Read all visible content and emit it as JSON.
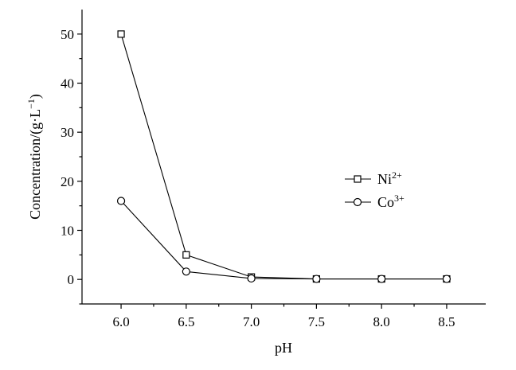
{
  "chart_data": {
    "type": "line",
    "xlabel": "pH",
    "ylabel": "Concentration/(g·L",
    "ylabel_sup": "−1",
    "ylabel_tail": ")",
    "x": [
      6.0,
      6.5,
      7.0,
      7.5,
      8.0,
      8.5
    ],
    "x_tick_labels": [
      "6.0",
      "6.5",
      "7.0",
      "7.5",
      "8.0",
      "8.5"
    ],
    "y_tick_labels": [
      "0",
      "10",
      "20",
      "30",
      "40",
      "50"
    ],
    "y_ticks": [
      0,
      10,
      20,
      30,
      40,
      50
    ],
    "xlim": [
      5.7,
      8.8
    ],
    "ylim": [
      -5,
      55
    ],
    "grid": false,
    "legend_position": "center-right",
    "series": [
      {
        "name": "Ni",
        "name_sup": "2+",
        "marker": "square",
        "values": [
          50,
          5,
          0.5,
          0.1,
          0.1,
          0.1
        ]
      },
      {
        "name": "Co",
        "name_sup": "3+",
        "marker": "circle",
        "values": [
          16,
          1.6,
          0.2,
          0.1,
          0.1,
          0.1
        ]
      }
    ]
  }
}
